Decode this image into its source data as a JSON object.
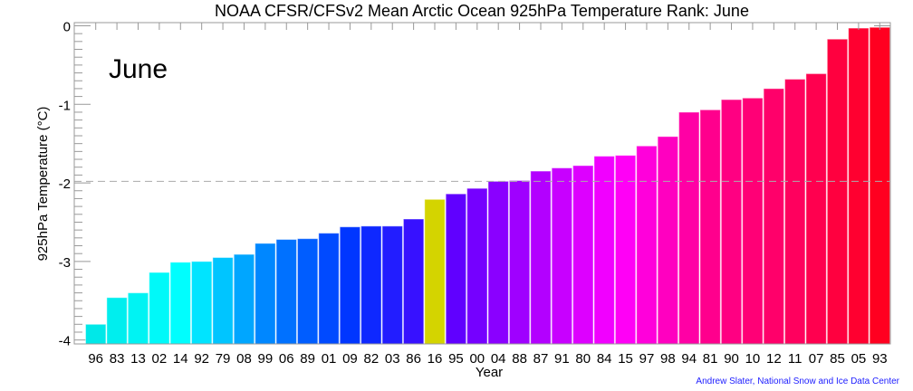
{
  "chart_data": {
    "type": "bar",
    "title": "NOAA CFSR/CFSv2 Mean Arctic Ocean 925hPa Temperature Rank: June",
    "inset_label": "June",
    "xlabel": "Year",
    "ylabel": "925hPa Temperature (°C)",
    "credit": "Andrew Slater, National Snow and Ice Data Center",
    "ylim": [
      -4.05,
      0.04
    ],
    "yticks": [
      0,
      -1,
      -2,
      -3,
      -4
    ],
    "reference_line": -1.98,
    "categories": [
      "96",
      "83",
      "13",
      "02",
      "14",
      "92",
      "79",
      "08",
      "99",
      "06",
      "89",
      "01",
      "09",
      "82",
      "03",
      "86",
      "16",
      "95",
      "00",
      "04",
      "88",
      "87",
      "91",
      "80",
      "84",
      "15",
      "97",
      "98",
      "94",
      "81",
      "90",
      "10",
      "12",
      "11",
      "07",
      "85",
      "05",
      "93"
    ],
    "values": [
      -3.8,
      -3.46,
      -3.4,
      -3.14,
      -3.01,
      -3.0,
      -2.95,
      -2.91,
      -2.77,
      -2.72,
      -2.71,
      -2.64,
      -2.56,
      -2.55,
      -2.55,
      -2.46,
      -2.21,
      -2.14,
      -2.07,
      -1.98,
      -1.97,
      -1.85,
      -1.81,
      -1.78,
      -1.66,
      -1.65,
      -1.53,
      -1.41,
      -1.1,
      -1.07,
      -0.94,
      -0.92,
      -0.8,
      -0.68,
      -0.61,
      -0.17,
      -0.03,
      -0.02
    ],
    "colors": {
      "gradient": [
        "#00e8e8",
        "#00ffff",
        "#0080ff",
        "#0030ff",
        "#5500ff",
        "#aa00ff",
        "#ff00ff",
        "#ff0090",
        "#ff0060",
        "#ff0020"
      ],
      "highlight_category": "16",
      "highlight_color": "#d4d400",
      "reference_line_color": "#aaaaaa",
      "axis_color": "#999999"
    },
    "grid": false
  }
}
